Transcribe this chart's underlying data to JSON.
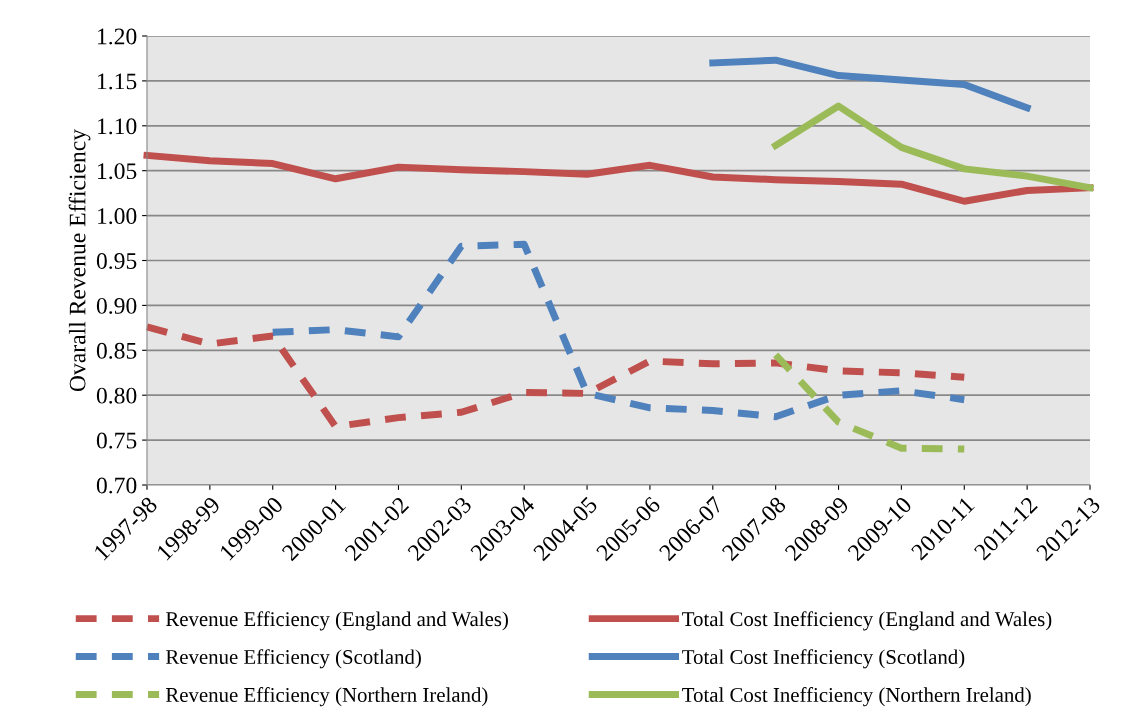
{
  "chart_data": {
    "type": "line",
    "ylabel": "Ovarall Revenue Efficiency",
    "categories": [
      "1997-98",
      "1998-99",
      "1999-00",
      "2000-01",
      "2001-02",
      "2002-03",
      "2003-04",
      "2004-05",
      "2005-06",
      "2006-07",
      "2007-08",
      "2008-09",
      "2009-10",
      "2010-11",
      "2011-12",
      "2012-13"
    ],
    "ylim": [
      0.7,
      1.2
    ],
    "yticks": [
      {
        "value": 0.7,
        "label": "0.70"
      },
      {
        "value": 0.75,
        "label": "0.75"
      },
      {
        "value": 0.8,
        "label": "0.80"
      },
      {
        "value": 0.85,
        "label": "0.85"
      },
      {
        "value": 0.9,
        "label": "0.90"
      },
      {
        "value": 0.95,
        "label": "0.95"
      },
      {
        "value": 1.0,
        "label": "1.00"
      },
      {
        "value": 1.05,
        "label": "1.05"
      },
      {
        "value": 1.1,
        "label": "1.10"
      },
      {
        "value": 1.15,
        "label": "1.15"
      },
      {
        "value": 1.2,
        "label": "1.20"
      }
    ],
    "grid": "y",
    "legend": "bottom",
    "marker": "none",
    "series": [
      {
        "name": "Revenue Efficiency (England and Wales)",
        "color": "#c0504d",
        "line_style": "dashed",
        "values": [
          0.876,
          0.857,
          0.866,
          0.765,
          0.775,
          0.781,
          0.803,
          0.802,
          0.838,
          0.835,
          0.836,
          0.827,
          0.825,
          0.82,
          null,
          null
        ]
      },
      {
        "name": "Total Cost Inefficiency (England and Wales)",
        "color": "#c0504d",
        "line_style": "solid",
        "values": [
          1.067,
          1.061,
          1.058,
          1.041,
          1.054,
          1.051,
          1.049,
          1.046,
          1.056,
          1.043,
          1.04,
          1.038,
          1.035,
          1.016,
          1.028,
          1.031
        ]
      },
      {
        "name": "Revenue Efficiency (Scotland)",
        "color": "#4f81bd",
        "line_style": "dashed",
        "values": [
          null,
          null,
          0.87,
          0.873,
          0.865,
          0.966,
          0.968,
          0.802,
          0.786,
          0.783,
          0.776,
          0.8,
          0.805,
          0.795,
          null,
          null
        ]
      },
      {
        "name": "Total Cost Inefficiency (Scotland)",
        "color": "#4f81bd",
        "line_style": "solid",
        "values": [
          null,
          null,
          null,
          null,
          null,
          null,
          null,
          null,
          null,
          1.17,
          1.173,
          1.156,
          1.151,
          1.146,
          1.12,
          null
        ]
      },
      {
        "name": "Revenue Efficiency (Northern Ireland)",
        "color": "#9bbb59",
        "line_style": "dashed",
        "values": [
          null,
          null,
          null,
          null,
          null,
          null,
          null,
          null,
          null,
          null,
          0.845,
          0.77,
          0.741,
          0.74,
          null,
          null
        ]
      },
      {
        "name": "Total Cost Inefficiency (Northern Ireland)",
        "color": "#9bbb59",
        "line_style": "solid",
        "values": [
          null,
          null,
          null,
          null,
          null,
          null,
          null,
          null,
          null,
          null,
          1.078,
          1.122,
          1.076,
          1.052,
          1.044,
          1.031
        ]
      }
    ]
  }
}
